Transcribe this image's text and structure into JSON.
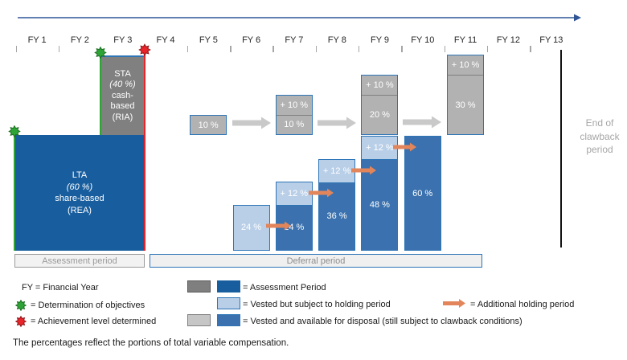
{
  "timeline": {
    "years": [
      "FY 1",
      "FY 2",
      "FY 3",
      "FY 4",
      "FY 5",
      "FY 6",
      "FY 7",
      "FY 8",
      "FY 9",
      "FY 10",
      "FY 11",
      "FY 12",
      "FY 13"
    ]
  },
  "award_boxes": {
    "sta": {
      "lines": [
        {
          "text": "STA",
          "italic": false
        },
        {
          "text": "(40 %)",
          "italic": true
        },
        {
          "text": "cash-",
          "italic": false
        },
        {
          "text": "based",
          "italic": false
        },
        {
          "text": "(RIA)",
          "italic": false
        }
      ]
    },
    "lta": {
      "lines": [
        {
          "text": "LTA",
          "italic": false
        },
        {
          "text": "(60 %)",
          "italic": true
        },
        {
          "text": "share-based",
          "italic": false
        },
        {
          "text": "(REA)",
          "italic": false
        }
      ]
    }
  },
  "period_bars": {
    "assessment": "Assessment period",
    "deferral": "Deferral period"
  },
  "clawback_label": "End of clawback period",
  "chart_data": {
    "type": "timeline-diagram",
    "unit": "percent of total variable compensation",
    "sta_payout_bars": [
      {
        "fy": 5,
        "segments": [
          {
            "value": 10,
            "label": "10 %"
          }
        ]
      },
      {
        "fy": 7,
        "segments": [
          {
            "value": 10,
            "label": "+ 10 %"
          },
          {
            "value": 10,
            "label": "10 %"
          }
        ]
      },
      {
        "fy": 9,
        "segments": [
          {
            "value": 10,
            "label": "+ 10 %"
          },
          {
            "value": 20,
            "label": "20 %"
          }
        ]
      },
      {
        "fy": 11,
        "segments": [
          {
            "value": 10,
            "label": "+ 10 %"
          },
          {
            "value": 30,
            "label": "30 %"
          }
        ]
      }
    ],
    "lta_payout_bars": [
      {
        "fy": 6,
        "segments": [
          {
            "value": 24,
            "label": "24 %",
            "style": "holding"
          }
        ]
      },
      {
        "fy": 7,
        "segments": [
          {
            "value": 12,
            "label": "+ 12 %",
            "style": "holding"
          },
          {
            "value": 24,
            "label": "24 %",
            "style": "available"
          }
        ]
      },
      {
        "fy": 8,
        "segments": [
          {
            "value": 12,
            "label": "+ 12 %",
            "style": "holding"
          },
          {
            "value": 36,
            "label": "36 %",
            "style": "available"
          }
        ]
      },
      {
        "fy": 9,
        "segments": [
          {
            "value": 12,
            "label": "+ 12 %",
            "style": "holding"
          },
          {
            "value": 48,
            "label": "48 %",
            "style": "available"
          }
        ]
      },
      {
        "fy": 10,
        "segments": [
          {
            "value": 60,
            "label": "60 %",
            "style": "available"
          }
        ]
      }
    ]
  },
  "legend": {
    "fy_definition": "FY = Financial Year",
    "determination": "= Determination of objectives",
    "achievement": "= Achievement level determined",
    "assessment_period": "= Assessment Period",
    "vested_holding": "= Vested but subject to holding period",
    "additional_holding": "= Additional holding period",
    "vested_available": "= Vested and available for disposal (still subject to clawback conditions)"
  },
  "footnote": "The percentages reflect the portions of total variable compensation.",
  "colors": {
    "accent_border": "#2e75b6",
    "dark_blue": "#185e9e",
    "medium_blue": "#3a71ae",
    "light_blue": "#b9cfe8",
    "bar_gray": "#b2b2b2",
    "dark_gray": "#7f7f7f",
    "timeline_navy": "#2f5597",
    "gray_arrow": "#c9c9c9",
    "orange_arrow": "#e2855b",
    "green_marker": "#2ea437",
    "red_marker": "#e8252a"
  }
}
